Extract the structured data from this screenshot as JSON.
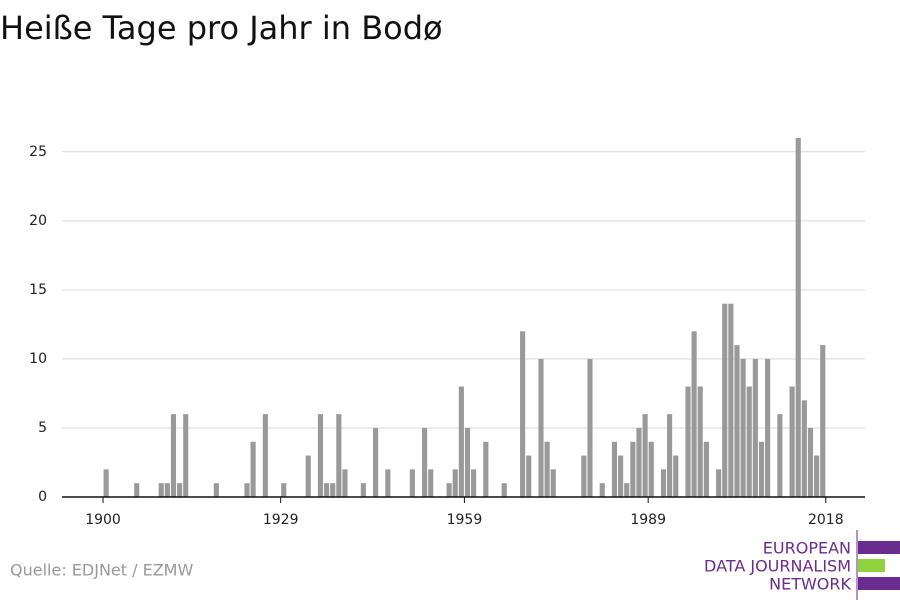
{
  "chart_data": {
    "type": "bar",
    "title": "Heiße Tage pro Jahr in Bodø",
    "x": [
      1900,
      1901,
      1902,
      1903,
      1904,
      1905,
      1906,
      1907,
      1908,
      1909,
      1910,
      1911,
      1912,
      1913,
      1914,
      1915,
      1916,
      1917,
      1918,
      1919,
      1920,
      1921,
      1922,
      1923,
      1924,
      1925,
      1926,
      1927,
      1928,
      1929,
      1930,
      1931,
      1932,
      1933,
      1934,
      1935,
      1936,
      1937,
      1938,
      1939,
      1940,
      1941,
      1942,
      1943,
      1944,
      1945,
      1946,
      1947,
      1948,
      1949,
      1950,
      1951,
      1952,
      1953,
      1954,
      1955,
      1956,
      1957,
      1958,
      1959,
      1960,
      1961,
      1962,
      1963,
      1964,
      1965,
      1966,
      1967,
      1968,
      1969,
      1970,
      1971,
      1972,
      1973,
      1974,
      1975,
      1976,
      1977,
      1978,
      1979,
      1980,
      1981,
      1982,
      1983,
      1984,
      1985,
      1986,
      1987,
      1988,
      1989,
      1990,
      1991,
      1992,
      1993,
      1994,
      1995,
      1996,
      1997,
      1998,
      1999,
      2000,
      2001,
      2002,
      2003,
      2004,
      2005,
      2006,
      2007,
      2008,
      2009,
      2010,
      2011,
      2012,
      2013,
      2014,
      2015,
      2016,
      2017
    ],
    "values": [
      2,
      0,
      0,
      0,
      0,
      1,
      0,
      0,
      0,
      1,
      1,
      6,
      1,
      6,
      0,
      0,
      0,
      0,
      1,
      0,
      0,
      0,
      0,
      1,
      4,
      0,
      6,
      0,
      0,
      1,
      0,
      0,
      0,
      3,
      0,
      6,
      1,
      1,
      6,
      2,
      0,
      0,
      1,
      0,
      5,
      0,
      2,
      0,
      0,
      0,
      2,
      0,
      5,
      2,
      0,
      0,
      1,
      2,
      8,
      5,
      2,
      0,
      4,
      0,
      0,
      1,
      0,
      0,
      12,
      3,
      0,
      10,
      4,
      2,
      0,
      0,
      0,
      0,
      3,
      10,
      0,
      1,
      0,
      4,
      3,
      1,
      4,
      5,
      6,
      4,
      0,
      2,
      6,
      3,
      0,
      8,
      12,
      8,
      4,
      0,
      2,
      14,
      14,
      11,
      10,
      8,
      10,
      4,
      10,
      0,
      6,
      0,
      8,
      26,
      7,
      5,
      3,
      11
    ],
    "color": "#999999",
    "xlim": [
      1893.3,
      2024.4
    ],
    "xticks": [
      1900,
      1929,
      1959,
      1989,
      2018
    ],
    "ylim": [
      0,
      26
    ],
    "yticks": [
      0,
      5,
      10,
      15,
      20,
      25
    ],
    "grid": true
  },
  "source": "Quelle: EDJNet / EZMW",
  "logo": {
    "lines": [
      "EUROPEAN",
      "DATA JOURNALISM",
      "NETWORK"
    ]
  }
}
